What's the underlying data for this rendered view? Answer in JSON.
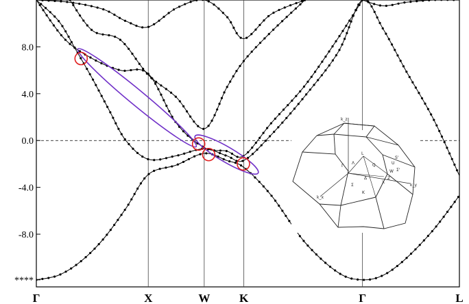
{
  "chart_data": {
    "type": "line",
    "title": "",
    "xlabel": "",
    "ylabel": "",
    "ylim": [
      -12.5,
      12.0
    ],
    "fermi_level": 0.0,
    "x_ticks": [
      {
        "label": "Γ",
        "x": 0.0
      },
      {
        "label": "X",
        "x": 1.0
      },
      {
        "label": "W",
        "x": 1.5
      },
      {
        "label": "K",
        "x": 1.854
      },
      {
        "label": "Γ",
        "x": 2.914
      },
      {
        "label": "L",
        "x": 3.78
      }
    ],
    "y_ticks": [
      {
        "label": "8.0",
        "y": 8.0
      },
      {
        "label": "4.0",
        "y": 4.0
      },
      {
        "label": "0.0",
        "y": 0.0
      },
      {
        "label": "-4.0",
        "y": -4.0
      },
      {
        "label": "-8.0",
        "y": -8.0
      },
      {
        "label": "****",
        "y": -11.9
      }
    ],
    "series": [
      {
        "x": [
          0.0,
          0.2,
          0.4,
          0.6,
          0.8,
          1.0,
          1.25,
          1.5,
          1.7,
          1.854,
          2.1,
          2.4,
          2.7,
          2.914,
          3.1,
          3.3,
          3.55,
          3.78
        ],
        "y": [
          -11.9,
          -11.5,
          -10.3,
          -8.4,
          -5.8,
          -2.9,
          -2.1,
          -1.1,
          -1.7,
          -2.3,
          -4.7,
          -8.7,
          -11.3,
          -11.9,
          -11.5,
          -10.1,
          -7.6,
          -4.7
        ]
      },
      {
        "x": [
          0.0,
          0.2,
          0.35,
          0.5,
          0.65,
          0.8,
          1.0,
          1.25,
          1.5,
          1.7,
          1.854,
          2.1,
          2.4,
          2.7,
          2.914,
          3.1,
          3.3,
          3.55,
          3.78
        ],
        "y": [
          12.0,
          10.2,
          7.8,
          5.3,
          2.6,
          0.0,
          -1.6,
          -1.3,
          -0.7,
          -1.3,
          -1.7,
          0.5,
          3.8,
          7.6,
          12.0,
          9.5,
          6.0,
          1.8,
          -3.0
        ]
      },
      {
        "x": [
          0.0,
          0.25,
          0.5,
          0.75,
          1.0,
          1.25,
          1.5,
          1.7,
          1.854,
          2.1,
          2.4,
          2.7,
          2.914
        ],
        "y": [
          12.0,
          8.7,
          7.0,
          6.0,
          5.7,
          1.5,
          -0.6,
          -0.9,
          -1.3,
          1.5,
          4.7,
          8.8,
          12.0
        ]
      },
      {
        "x": [
          0.3,
          0.5,
          0.75,
          1.0,
          1.25,
          1.5,
          1.7,
          1.854,
          2.1,
          2.4
        ],
        "y": [
          12.0,
          9.4,
          8.6,
          5.6,
          3.7,
          1.0,
          4.5,
          6.8,
          9.3,
          12.0
        ]
      },
      {
        "x": [
          0.0,
          0.3,
          0.6,
          0.8,
          1.0,
          1.25,
          1.5,
          1.7,
          1.854,
          2.1,
          2.4
        ],
        "y": [
          12.0,
          11.8,
          11.2,
          10.2,
          9.7,
          11.3,
          12.0,
          10.6,
          8.7,
          10.8,
          12.0
        ]
      },
      {
        "x": [
          2.914,
          3.1,
          3.3,
          3.55,
          3.78
        ],
        "y": [
          12.0,
          11.5,
          11.8,
          12.0,
          12.0
        ]
      }
    ],
    "highlights": [
      {
        "shape": "ellipse",
        "color": "#7030c8",
        "x_range": [
          0.4,
          1.4
        ],
        "y_range": [
          -0.3,
          7.6
        ]
      },
      {
        "shape": "ellipse",
        "color": "#7030c8",
        "x_range": [
          1.45,
          1.95
        ],
        "y_range": [
          -2.6,
          0.2
        ]
      },
      {
        "shape": "circle",
        "color": "#e02020",
        "x": 0.4,
        "y": 7.0
      },
      {
        "shape": "circle",
        "color": "#e02020",
        "x": 1.45,
        "y": -0.3
      },
      {
        "shape": "circle",
        "color": "#e02020",
        "x": 1.54,
        "y": -1.2
      },
      {
        "shape": "circle",
        "color": "#e02020",
        "x": 1.85,
        "y": -2.0
      }
    ],
    "inset": {
      "description": "first Brillouin zone of FCC lattice",
      "labels": [
        "k_z",
        "k_y",
        "k_x",
        "Γ",
        "Λ",
        "L",
        "Q",
        "Δ",
        "X",
        "Z",
        "W",
        "Σ",
        "K",
        "U",
        "Σ'",
        "S'"
      ]
    },
    "grid": false,
    "legend": "none"
  }
}
